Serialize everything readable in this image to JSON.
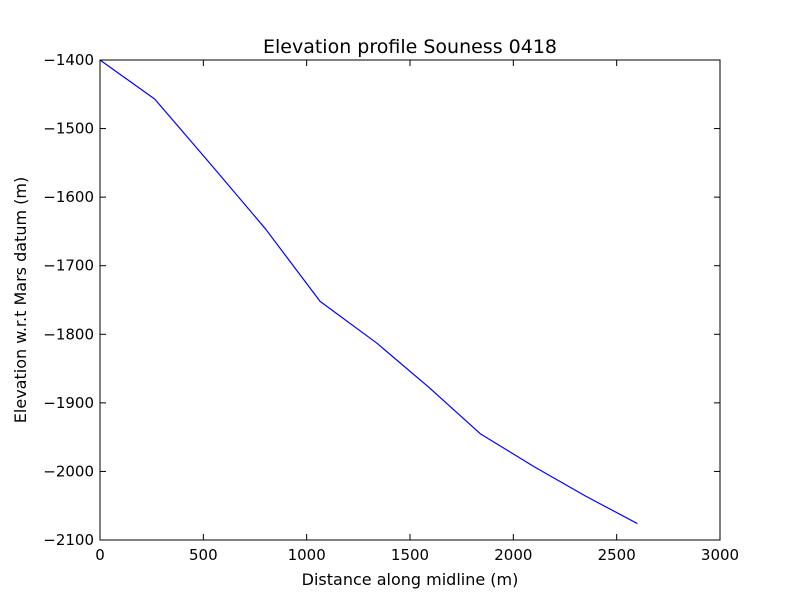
{
  "chart_data": {
    "type": "line",
    "title": "Elevation profile Souness 0418",
    "xlabel": "Distance along midline (m)",
    "ylabel": "Elevation w.r.t Mars datum (m)",
    "xlim": [
      0,
      3000
    ],
    "ylim": [
      -2100,
      -1400
    ],
    "xticks": [
      0,
      500,
      1000,
      1500,
      2000,
      2500,
      3000
    ],
    "xtick_labels": [
      "0",
      "500",
      "1000",
      "1500",
      "2000",
      "2500",
      "3000"
    ],
    "yticks": [
      -1400,
      -1500,
      -1600,
      -1700,
      -1800,
      -1900,
      -2000,
      -2100
    ],
    "ytick_labels": [
      "−1400",
      "−1500",
      "−1600",
      "−1700",
      "−1800",
      "−1900",
      "−2000",
      "−2100"
    ],
    "grid": false,
    "series": [
      {
        "color": "#0000ff",
        "x": [
          0,
          265,
          530,
          800,
          1065,
          1340,
          1590,
          1840,
          2100,
          2350,
          2600
        ],
        "y": [
          -1400,
          -1457,
          -1550,
          -1646,
          -1752,
          -1813,
          -1877,
          -1945,
          -1993,
          -2036,
          -2076
        ]
      }
    ]
  }
}
